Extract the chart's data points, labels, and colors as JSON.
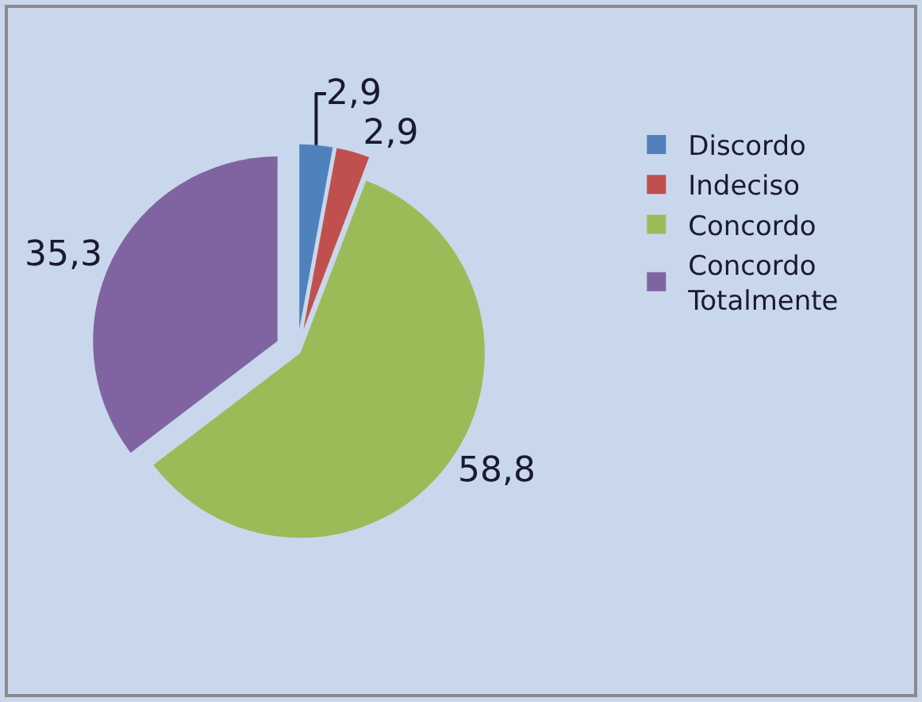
{
  "chart_data": {
    "type": "pie",
    "categories": [
      "Discordo",
      "Indeciso",
      "Concordo",
      "Concordo Totalmente"
    ],
    "values": [
      2.9,
      2.9,
      58.8,
      35.3
    ],
    "colors": [
      "#4f81bd",
      "#c0504d",
      "#9bbb59",
      "#8064a2"
    ],
    "value_labels": [
      "2,9",
      "2,9",
      "58,8",
      "35,3"
    ],
    "legend": "right"
  }
}
